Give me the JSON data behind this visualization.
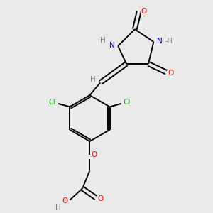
{
  "bg_color": "#eaeaea",
  "atom_colors": {
    "C": "#000000",
    "H": "#808080",
    "N": "#0000cc",
    "O": "#ff0000",
    "Cl": "#00aa00"
  },
  "bond_color": "#000000",
  "figsize": [
    3.0,
    3.0
  ],
  "dpi": 100
}
